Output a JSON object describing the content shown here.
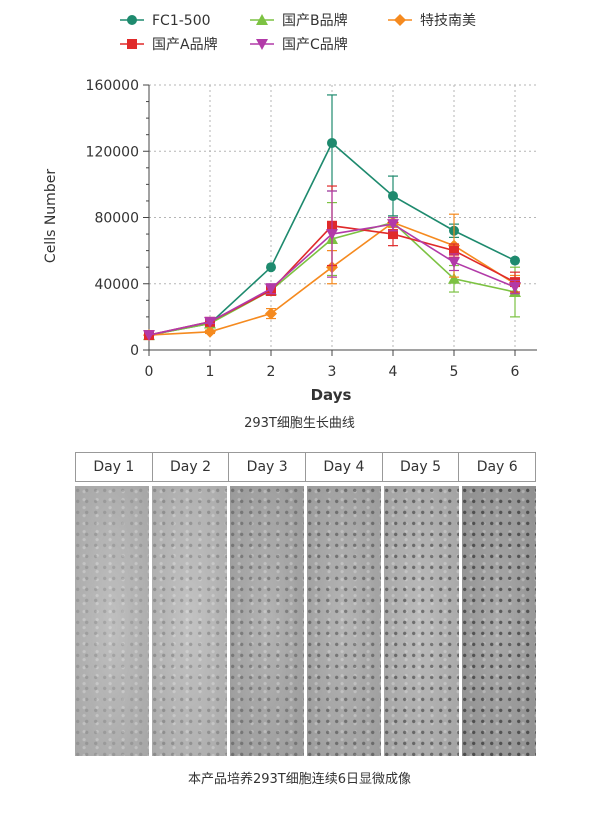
{
  "chart_data": {
    "type": "line",
    "title": "293T细胞生长曲线",
    "xlabel": "Days",
    "ylabel": "Cells Number",
    "x": [
      0,
      1,
      2,
      3,
      4,
      5,
      6
    ],
    "xlim": [
      0,
      6
    ],
    "ylim": [
      0,
      160000
    ],
    "yticks": [
      0,
      40000,
      80000,
      120000,
      160000
    ],
    "ytick_labels": [
      "0",
      "40000",
      "80000",
      "120000",
      "160000"
    ],
    "xtick_labels": [
      "0",
      "1",
      "2",
      "3",
      "4",
      "5",
      "6"
    ],
    "grid": true,
    "legend_position": "top",
    "series": [
      {
        "name": "FC1-500",
        "color": "#1e8a6e",
        "marker": "circle",
        "values": [
          9000,
          16000,
          50000,
          125000,
          93000,
          72000,
          54000
        ],
        "errors": [
          0,
          2000,
          0,
          29000,
          12000,
          4000,
          0
        ]
      },
      {
        "name": "国产B品牌",
        "color": "#7cc242",
        "marker": "triangle-up",
        "values": [
          9000,
          16000,
          36000,
          67000,
          77000,
          43000,
          35000
        ],
        "errors": [
          0,
          1500,
          3000,
          22000,
          3000,
          8000,
          15000
        ]
      },
      {
        "name": "特技南美",
        "color": "#f58a1f",
        "marker": "diamond",
        "values": [
          9000,
          11000,
          22000,
          50000,
          77000,
          63000,
          40000
        ],
        "errors": [
          0,
          1000,
          3000,
          10000,
          3000,
          19000,
          5000
        ]
      },
      {
        "name": "国产A品牌",
        "color": "#e02a2a",
        "marker": "square",
        "values": [
          9000,
          17000,
          36000,
          75000,
          70000,
          60000,
          41000
        ],
        "errors": [
          0,
          1000,
          3000,
          24000,
          7000,
          4000,
          6000
        ]
      },
      {
        "name": "国产C品牌",
        "color": "#b23aa8",
        "marker": "triangle-down",
        "values": [
          9000,
          17000,
          37000,
          70000,
          76000,
          53000,
          38000
        ],
        "errors": [
          0,
          1000,
          3000,
          26000,
          4000,
          5000,
          4000
        ]
      }
    ]
  },
  "micrographs": {
    "day_labels": [
      "Day 1",
      "Day 2",
      "Day 3",
      "Day 4",
      "Day 5",
      "Day 6"
    ],
    "caption": "本产品培养293T细胞连续6日显微成像",
    "tones": [
      "#b4b4b4",
      "#b8b8b8",
      "#a6a6a6",
      "#a8a8a8",
      "#b0b0b0",
      "#9a9a9a"
    ]
  }
}
